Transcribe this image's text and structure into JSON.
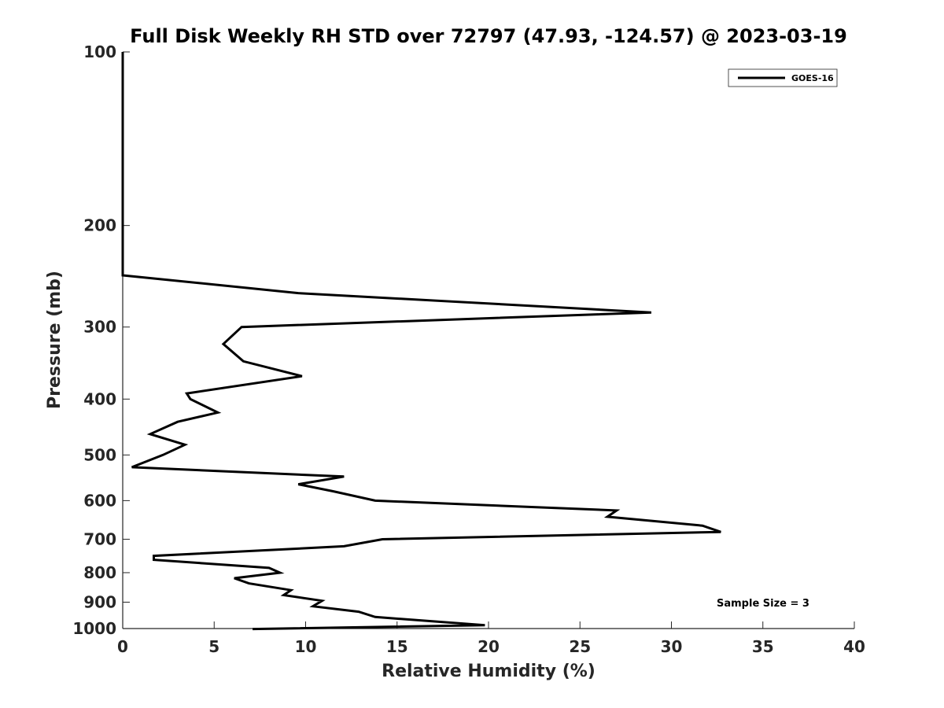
{
  "chart_data": {
    "type": "line",
    "title": "Full Disk Weekly RH STD over 72797 (47.93, -124.57) @ 2023-03-19",
    "xlabel": "Relative Humidity (%)",
    "ylabel": "Pressure (mb)",
    "xlim": [
      0,
      40
    ],
    "ylim": [
      1000,
      100
    ],
    "yscale": "log",
    "xticks": [
      0,
      5,
      10,
      15,
      20,
      25,
      30,
      35,
      40
    ],
    "yticks": [
      100,
      200,
      300,
      400,
      500,
      600,
      700,
      800,
      900,
      1000
    ],
    "legend_position": "top-right",
    "grid": false,
    "annotation": "Sample Size = 3",
    "series": [
      {
        "name": "GOES-16",
        "color": "#000000",
        "x": [
          0,
          0,
          0,
          9.6,
          28.9,
          6.5,
          5.5,
          6.6,
          9.8,
          3.5,
          3.7,
          5.2,
          3.0,
          1.5,
          3.4,
          2.2,
          0.5,
          12.1,
          9.6,
          11.5,
          13.8,
          27.0,
          26.5,
          31.7,
          32.7,
          14.2,
          12.1,
          1.7,
          1.7,
          8.0,
          8.6,
          6.1,
          6.9,
          9.2,
          8.8,
          10.9,
          10.4,
          12.9,
          13.8,
          19.8,
          7.1
        ],
        "y": [
          100,
          200,
          244,
          262,
          283,
          300,
          321,
          344,
          365,
          391,
          400,
          422,
          438,
          460,
          480,
          500,
          525,
          545,
          562,
          578,
          600,
          624,
          640,
          663,
          680,
          700,
          720,
          748,
          760,
          785,
          800,
          818,
          835,
          858,
          875,
          895,
          915,
          935,
          955,
          987,
          1002
        ]
      }
    ]
  }
}
